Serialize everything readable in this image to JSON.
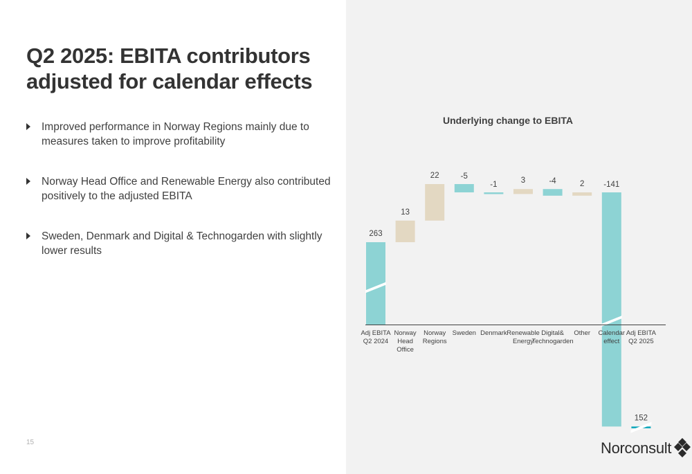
{
  "slide": {
    "title": "Q2 2025: EBITA contributors adjusted for calendar effects",
    "bullets": [
      "Improved performance in Norway Regions mainly due to measures taken to improve profitability",
      "Norway Head Office and Renewable Energy also contributed positively to the adjusted EBITA",
      "Sweden, Denmark and Digital & Technogarden with slightly lower results"
    ],
    "page_number": "15"
  },
  "brand": {
    "logo_text": "Norconsult",
    "logo_icon": "diamond-cluster-icon"
  },
  "colors": {
    "teal": "#8dd3d4",
    "dark_teal": "#0aa6ba",
    "beige": "#e3d8c2",
    "background_panel": "#f2f2f2"
  },
  "chart_data": {
    "type": "waterfall",
    "title": "Underlying change to EBITA",
    "categories": [
      "Adj EBITA Q2 2024",
      "Norway Head Office",
      "Norway Regions",
      "Sweden",
      "Denmark",
      "Renewable Energy",
      "Digital& Technogarden",
      "Other",
      "Calendar effect",
      "Adj EBITA Q2 2025"
    ],
    "category_lines": [
      [
        "Adj EBITA",
        "Q2 2024"
      ],
      [
        "Norway",
        "Head",
        "Office"
      ],
      [
        "Norway",
        "Regions"
      ],
      [
        "Sweden"
      ],
      [
        "Denmark"
      ],
      [
        "Renewable",
        "Energy"
      ],
      [
        "Digital&",
        "Technogarden"
      ],
      [
        "Other"
      ],
      [
        "Calendar",
        "effect"
      ],
      [
        "Adj EBITA",
        "Q2 2025"
      ]
    ],
    "values": [
      263,
      13,
      22,
      -5,
      -1,
      3,
      -4,
      2,
      -141,
      152
    ],
    "labels": [
      "263",
      "13",
      "22",
      "-5",
      "-1",
      "3",
      "-4",
      "2",
      "-141",
      "152"
    ],
    "bar_kinds": [
      "total",
      "increase",
      "increase",
      "decrease",
      "decrease",
      "increase",
      "decrease",
      "increase",
      "decrease",
      "total"
    ],
    "axis_break": true
  }
}
